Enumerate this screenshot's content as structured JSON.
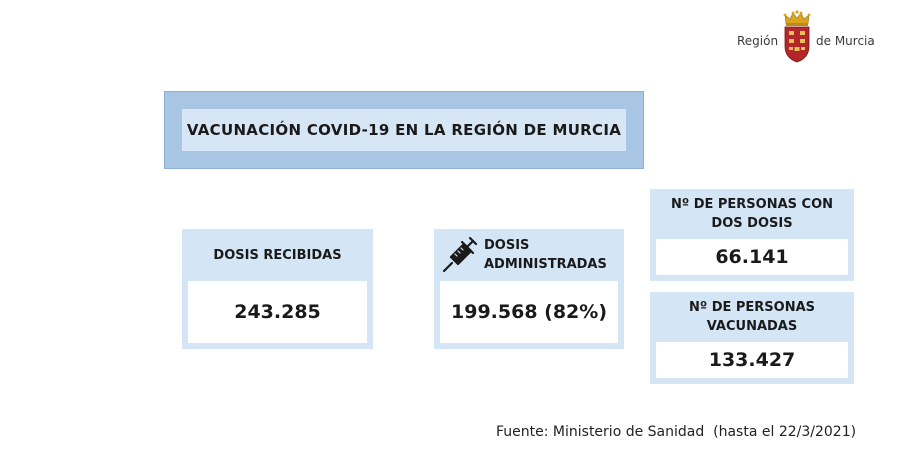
{
  "logo": {
    "left_text": "Región",
    "right_text": "de Murcia"
  },
  "title": "VACUNACIÓN COVID-19 EN LA REGIÓN DE MURCIA",
  "cards": {
    "dosis_recibidas": {
      "label": "DOSIS RECIBIDAS",
      "value": "243.285"
    },
    "dosis_administradas": {
      "label_line1": "DOSIS",
      "label_line2": "ADMINISTRADAS",
      "value": "199.568 (82%)",
      "icon": "syringe-icon"
    },
    "dos_dosis": {
      "label_line1": "Nº DE PERSONAS CON",
      "label_line2": "DOS DOSIS",
      "value": "66.141"
    },
    "vacunadas": {
      "label_line1": "Nº DE PERSONAS",
      "label_line2": "VACUNADAS",
      "value": "133.427"
    }
  },
  "source": "Fuente: Ministerio de Sanidad  (hasta el 22/3/2021)",
  "colors": {
    "title_outer": "#a9c5e4",
    "title_inner": "#d7e6f5",
    "card_bg": "#d4e5f5",
    "crest_red": "#b3262a",
    "crown_gold": "#d9a520"
  }
}
